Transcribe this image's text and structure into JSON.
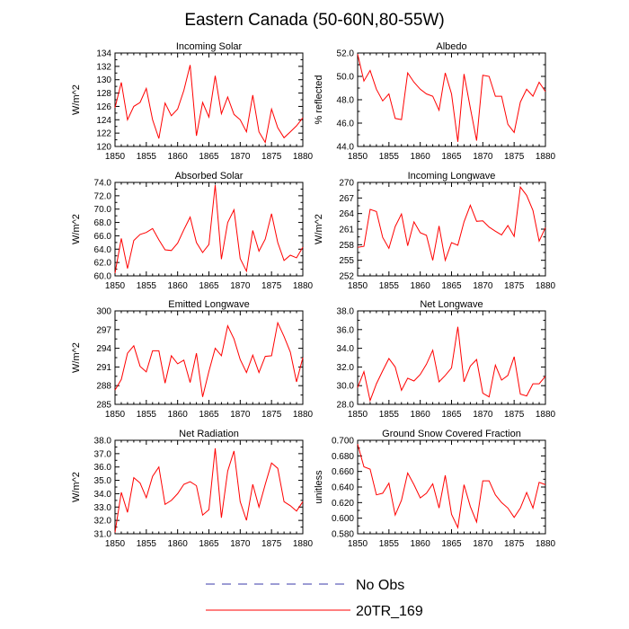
{
  "title": "Eastern Canada (50-60N,80-55W)",
  "colors": {
    "model": "#ff0000",
    "obs": "#3a3aaa",
    "axis": "#000000"
  },
  "legend": [
    {
      "label": "No Obs",
      "style": "dashed",
      "color": "#3a3aaa"
    },
    {
      "label": "20TR_169",
      "style": "solid",
      "color": "#ff0000"
    }
  ],
  "chart_data": [
    {
      "type": "line",
      "title": "Incoming Solar",
      "xlabel": "",
      "ylabel": "W/m^2",
      "xlim": [
        1850,
        1880
      ],
      "ylim": [
        120,
        134
      ],
      "xticks": [
        "1850",
        "1855",
        "1860",
        "1865",
        "1870",
        "1875",
        "1880"
      ],
      "yticks": [
        "120",
        "122",
        "124",
        "126",
        "128",
        "130",
        "132",
        "134"
      ],
      "series": [
        {
          "name": "20TR_169",
          "x": [
            1850,
            1851,
            1852,
            1853,
            1854,
            1855,
            1856,
            1857,
            1858,
            1859,
            1860,
            1861,
            1862,
            1863,
            1864,
            1865,
            1866,
            1867,
            1868,
            1869,
            1870,
            1871,
            1872,
            1873,
            1874,
            1875,
            1876,
            1877,
            1878,
            1879,
            1880
          ],
          "y": [
            125.8,
            129.6,
            124.0,
            126.0,
            126.6,
            128.7,
            124.0,
            121.2,
            126.5,
            124.6,
            125.6,
            128.4,
            132.2,
            121.6,
            126.6,
            124.4,
            130.6,
            124.9,
            127.4,
            124.8,
            124.0,
            122.2,
            127.7,
            122.2,
            120.6,
            125.6,
            122.8,
            121.3,
            122.2,
            123.1,
            124.3
          ]
        }
      ]
    },
    {
      "type": "line",
      "title": "Albedo",
      "xlabel": "",
      "ylabel": "% reflected",
      "xlim": [
        1850,
        1880
      ],
      "ylim": [
        44,
        52
      ],
      "xticks": [
        "1850",
        "1855",
        "1860",
        "1865",
        "1870",
        "1875",
        "1880"
      ],
      "yticks": [
        "44.0",
        "46.0",
        "48.0",
        "50.0",
        "52.0"
      ],
      "series": [
        {
          "name": "20TR_169",
          "x": [
            1850,
            1851,
            1852,
            1853,
            1854,
            1855,
            1856,
            1857,
            1858,
            1859,
            1860,
            1861,
            1862,
            1863,
            1864,
            1865,
            1866,
            1867,
            1868,
            1869,
            1870,
            1871,
            1872,
            1873,
            1874,
            1875,
            1876,
            1877,
            1878,
            1879,
            1880
          ],
          "y": [
            51.9,
            49.6,
            50.5,
            48.9,
            47.9,
            48.5,
            46.4,
            46.3,
            50.3,
            49.5,
            48.9,
            48.5,
            48.3,
            47.1,
            50.3,
            48.5,
            44.4,
            50.2,
            47.3,
            44.5,
            50.1,
            50.0,
            48.3,
            48.3,
            45.9,
            45.2,
            47.8,
            48.9,
            48.3,
            49.5,
            48.7
          ]
        }
      ]
    },
    {
      "type": "line",
      "title": "Absorbed Solar",
      "xlabel": "",
      "ylabel": "W/m^2",
      "xlim": [
        1850,
        1880
      ],
      "ylim": [
        60,
        74
      ],
      "xticks": [
        "1850",
        "1855",
        "1860",
        "1865",
        "1870",
        "1875",
        "1880"
      ],
      "yticks": [
        "60.0",
        "62.0",
        "64.0",
        "66.0",
        "68.0",
        "70.0",
        "72.0",
        "74.0"
      ],
      "series": [
        {
          "name": "20TR_169",
          "x": [
            1850,
            1851,
            1852,
            1853,
            1854,
            1855,
            1856,
            1857,
            1858,
            1859,
            1860,
            1861,
            1862,
            1863,
            1864,
            1865,
            1866,
            1867,
            1868,
            1869,
            1870,
            1871,
            1872,
            1873,
            1874,
            1875,
            1876,
            1877,
            1878,
            1879,
            1880
          ],
          "y": [
            60.4,
            65.6,
            61.1,
            65.3,
            66.2,
            66.5,
            67.1,
            65.4,
            63.9,
            63.8,
            64.9,
            66.9,
            68.8,
            65.0,
            63.5,
            64.7,
            73.6,
            62.5,
            68.0,
            69.9,
            62.6,
            60.7,
            66.8,
            63.7,
            65.5,
            69.3,
            65.0,
            62.3,
            63.1,
            62.7,
            64.3
          ]
        }
      ]
    },
    {
      "type": "line",
      "title": "Incoming Longwave",
      "xlabel": "",
      "ylabel": "W/m^2",
      "xlim": [
        1850,
        1880
      ],
      "ylim": [
        252,
        270
      ],
      "xticks": [
        "1850",
        "1855",
        "1860",
        "1865",
        "1870",
        "1875",
        "1880"
      ],
      "yticks": [
        "252",
        "255",
        "258",
        "261",
        "264",
        "267",
        "270"
      ],
      "series": [
        {
          "name": "20TR_169",
          "x": [
            1850,
            1851,
            1852,
            1853,
            1854,
            1855,
            1856,
            1857,
            1858,
            1859,
            1860,
            1861,
            1862,
            1863,
            1864,
            1865,
            1866,
            1867,
            1868,
            1869,
            1870,
            1871,
            1872,
            1873,
            1874,
            1875,
            1876,
            1877,
            1878,
            1879,
            1880
          ],
          "y": [
            257.5,
            257.7,
            264.8,
            264.4,
            259.4,
            257.3,
            261.5,
            263.9,
            257.8,
            262.4,
            260.3,
            259.8,
            255.0,
            261.6,
            255.0,
            258.4,
            257.9,
            262.4,
            265.6,
            262.5,
            262.6,
            261.4,
            260.6,
            259.9,
            261.7,
            259.6,
            269.1,
            267.5,
            264.6,
            258.7,
            261.3
          ]
        }
      ]
    },
    {
      "type": "line",
      "title": "Emitted Longwave",
      "xlabel": "",
      "ylabel": "W/m^2",
      "xlim": [
        1850,
        1880
      ],
      "ylim": [
        285,
        300
      ],
      "xticks": [
        "1850",
        "1855",
        "1860",
        "1865",
        "1870",
        "1875",
        "1880"
      ],
      "yticks": [
        "285",
        "288",
        "291",
        "294",
        "297",
        "300"
      ],
      "series": [
        {
          "name": "20TR_169",
          "x": [
            1850,
            1851,
            1852,
            1853,
            1854,
            1855,
            1856,
            1857,
            1858,
            1859,
            1860,
            1861,
            1862,
            1863,
            1864,
            1865,
            1866,
            1867,
            1868,
            1869,
            1870,
            1871,
            1872,
            1873,
            1874,
            1875,
            1876,
            1877,
            1878,
            1879,
            1880
          ],
          "y": [
            287.3,
            289.0,
            293.2,
            294.4,
            291.1,
            290.2,
            293.6,
            293.6,
            288.4,
            292.8,
            291.5,
            292.1,
            288.5,
            293.2,
            286.2,
            290.3,
            294.0,
            292.8,
            297.6,
            295.5,
            292.2,
            290.1,
            292.9,
            290.1,
            292.7,
            292.8,
            298.1,
            295.9,
            293.4,
            288.6,
            292.5
          ]
        }
      ]
    },
    {
      "type": "line",
      "title": "Net Longwave",
      "xlabel": "",
      "ylabel": "",
      "xlim": [
        1850,
        1880
      ],
      "ylim": [
        28,
        38
      ],
      "xticks": [
        "1850",
        "1855",
        "1860",
        "1865",
        "1870",
        "1875",
        "1880"
      ],
      "yticks": [
        "28.0",
        "30.0",
        "32.0",
        "34.0",
        "36.0",
        "38.0"
      ],
      "series": [
        {
          "name": "20TR_169",
          "x": [
            1850,
            1851,
            1852,
            1853,
            1854,
            1855,
            1856,
            1857,
            1858,
            1859,
            1860,
            1861,
            1862,
            1863,
            1864,
            1865,
            1866,
            1867,
            1868,
            1869,
            1870,
            1871,
            1872,
            1873,
            1874,
            1875,
            1876,
            1877,
            1878,
            1879,
            1880
          ],
          "y": [
            29.8,
            31.5,
            28.4,
            30.2,
            31.6,
            32.9,
            32.0,
            29.5,
            30.8,
            30.5,
            31.2,
            32.3,
            33.8,
            30.4,
            31.1,
            31.9,
            36.3,
            30.4,
            32.1,
            32.8,
            29.2,
            28.8,
            32.2,
            30.6,
            31.1,
            33.1,
            29.1,
            28.9,
            30.2,
            30.2,
            31.0
          ]
        }
      ]
    },
    {
      "type": "line",
      "title": "Net Radiation",
      "xlabel": "",
      "ylabel": "W/m^2",
      "xlim": [
        1850,
        1880
      ],
      "ylim": [
        31,
        38
      ],
      "xticks": [
        "1850",
        "1855",
        "1860",
        "1865",
        "1870",
        "1875",
        "1880"
      ],
      "yticks": [
        "31.0",
        "32.0",
        "33.0",
        "34.0",
        "35.0",
        "36.0",
        "37.0",
        "38.0"
      ],
      "series": [
        {
          "name": "20TR_169",
          "x": [
            1850,
            1851,
            1852,
            1853,
            1854,
            1855,
            1856,
            1857,
            1858,
            1859,
            1860,
            1861,
            1862,
            1863,
            1864,
            1865,
            1866,
            1867,
            1868,
            1869,
            1870,
            1871,
            1872,
            1873,
            1874,
            1875,
            1876,
            1877,
            1878,
            1879,
            1880
          ],
          "y": [
            31.1,
            34.1,
            32.6,
            35.2,
            34.8,
            33.7,
            35.3,
            36.0,
            33.2,
            33.5,
            34.0,
            34.7,
            34.9,
            34.6,
            32.4,
            32.8,
            37.4,
            32.2,
            35.7,
            37.2,
            33.4,
            32.0,
            34.7,
            33.0,
            34.7,
            36.3,
            35.9,
            33.4,
            33.1,
            32.7,
            33.4
          ]
        }
      ]
    },
    {
      "type": "line",
      "title": "Ground Snow Covered Fraction",
      "xlabel": "",
      "ylabel": "unitless",
      "xlim": [
        1850,
        1880
      ],
      "ylim": [
        0.58,
        0.7
      ],
      "xticks": [
        "1850",
        "1855",
        "1860",
        "1865",
        "1870",
        "1875",
        "1880"
      ],
      "yticks": [
        "0.580",
        "0.600",
        "0.620",
        "0.640",
        "0.660",
        "0.680",
        "0.700"
      ],
      "series": [
        {
          "name": "20TR_169",
          "x": [
            1850,
            1851,
            1852,
            1853,
            1854,
            1855,
            1856,
            1857,
            1858,
            1859,
            1860,
            1861,
            1862,
            1863,
            1864,
            1865,
            1866,
            1867,
            1868,
            1869,
            1870,
            1871,
            1872,
            1873,
            1874,
            1875,
            1876,
            1877,
            1878,
            1879,
            1880
          ],
          "y": [
            0.695,
            0.666,
            0.663,
            0.63,
            0.632,
            0.645,
            0.604,
            0.623,
            0.658,
            0.643,
            0.626,
            0.632,
            0.644,
            0.613,
            0.655,
            0.605,
            0.588,
            0.643,
            0.615,
            0.595,
            0.648,
            0.648,
            0.63,
            0.62,
            0.613,
            0.601,
            0.613,
            0.633,
            0.613,
            0.646,
            0.643
          ]
        }
      ]
    }
  ]
}
